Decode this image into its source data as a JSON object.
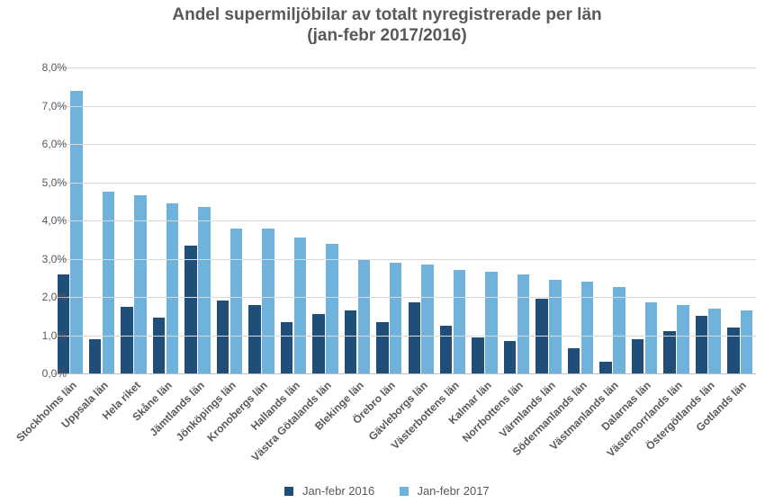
{
  "chart": {
    "type": "bar",
    "title_line1": "Andel supermiljöbilar av totalt nyregistrerade per län",
    "title_line2": "(jan-febr 2017/2016)",
    "title_fontsize": 19,
    "title_color": "#595959",
    "background_color": "#ffffff",
    "grid_color": "#d9d9d9",
    "baseline_color": "#bfbfbf",
    "axis_label_color": "#595959",
    "axis_fontsize": 12,
    "ylabel_format_suffix": "%",
    "ylim": [
      0,
      8
    ],
    "ytick_step": 1,
    "yticks": [
      "0,0%",
      "1,0%",
      "2,0%",
      "3,0%",
      "4,0%",
      "5,0%",
      "6,0%",
      "7,0%",
      "8,0%"
    ],
    "series": [
      {
        "name": "Jan-febr 2016",
        "color": "#1f4e79"
      },
      {
        "name": "Jan-febr 2017",
        "color": "#6fb3dc"
      }
    ],
    "categories": [
      {
        "label": "Stockholms län",
        "values": [
          2.6,
          7.4
        ]
      },
      {
        "label": "Uppsala län",
        "values": [
          0.9,
          4.75
        ]
      },
      {
        "label": "Hela riket",
        "values": [
          1.75,
          4.65
        ]
      },
      {
        "label": "Skåne län",
        "values": [
          1.45,
          4.45
        ]
      },
      {
        "label": "Jämtlands län",
        "values": [
          3.35,
          4.35
        ]
      },
      {
        "label": "Jönköpings län",
        "values": [
          1.9,
          3.8
        ]
      },
      {
        "label": "Kronobergs län",
        "values": [
          1.8,
          3.8
        ]
      },
      {
        "label": "Hallands län",
        "values": [
          1.35,
          3.55
        ]
      },
      {
        "label": "Västra Götalands län",
        "values": [
          1.55,
          3.4
        ]
      },
      {
        "label": "Blekinge län",
        "values": [
          1.65,
          3.0
        ]
      },
      {
        "label": "Örebro län",
        "values": [
          1.35,
          2.9
        ]
      },
      {
        "label": "Gävleborgs län",
        "values": [
          1.85,
          2.85
        ]
      },
      {
        "label": "Västerbottens län",
        "values": [
          1.25,
          2.7
        ]
      },
      {
        "label": "Kalmar län",
        "values": [
          0.95,
          2.65
        ]
      },
      {
        "label": "Norrbottens län",
        "values": [
          0.85,
          2.6
        ]
      },
      {
        "label": "Värmlands län",
        "values": [
          1.95,
          2.45
        ]
      },
      {
        "label": "Södermanlands län",
        "values": [
          0.65,
          2.4
        ]
      },
      {
        "label": "Västmanlands län",
        "values": [
          0.3,
          2.25
        ]
      },
      {
        "label": "Dalarnas län",
        "values": [
          0.9,
          1.85
        ]
      },
      {
        "label": "Västernorrlands län",
        "values": [
          1.1,
          1.8
        ]
      },
      {
        "label": "Östergötlands län",
        "values": [
          1.5,
          1.7
        ]
      },
      {
        "label": "Gotlands län",
        "values": [
          1.2,
          1.65
        ]
      }
    ],
    "legend_position": "bottom"
  }
}
